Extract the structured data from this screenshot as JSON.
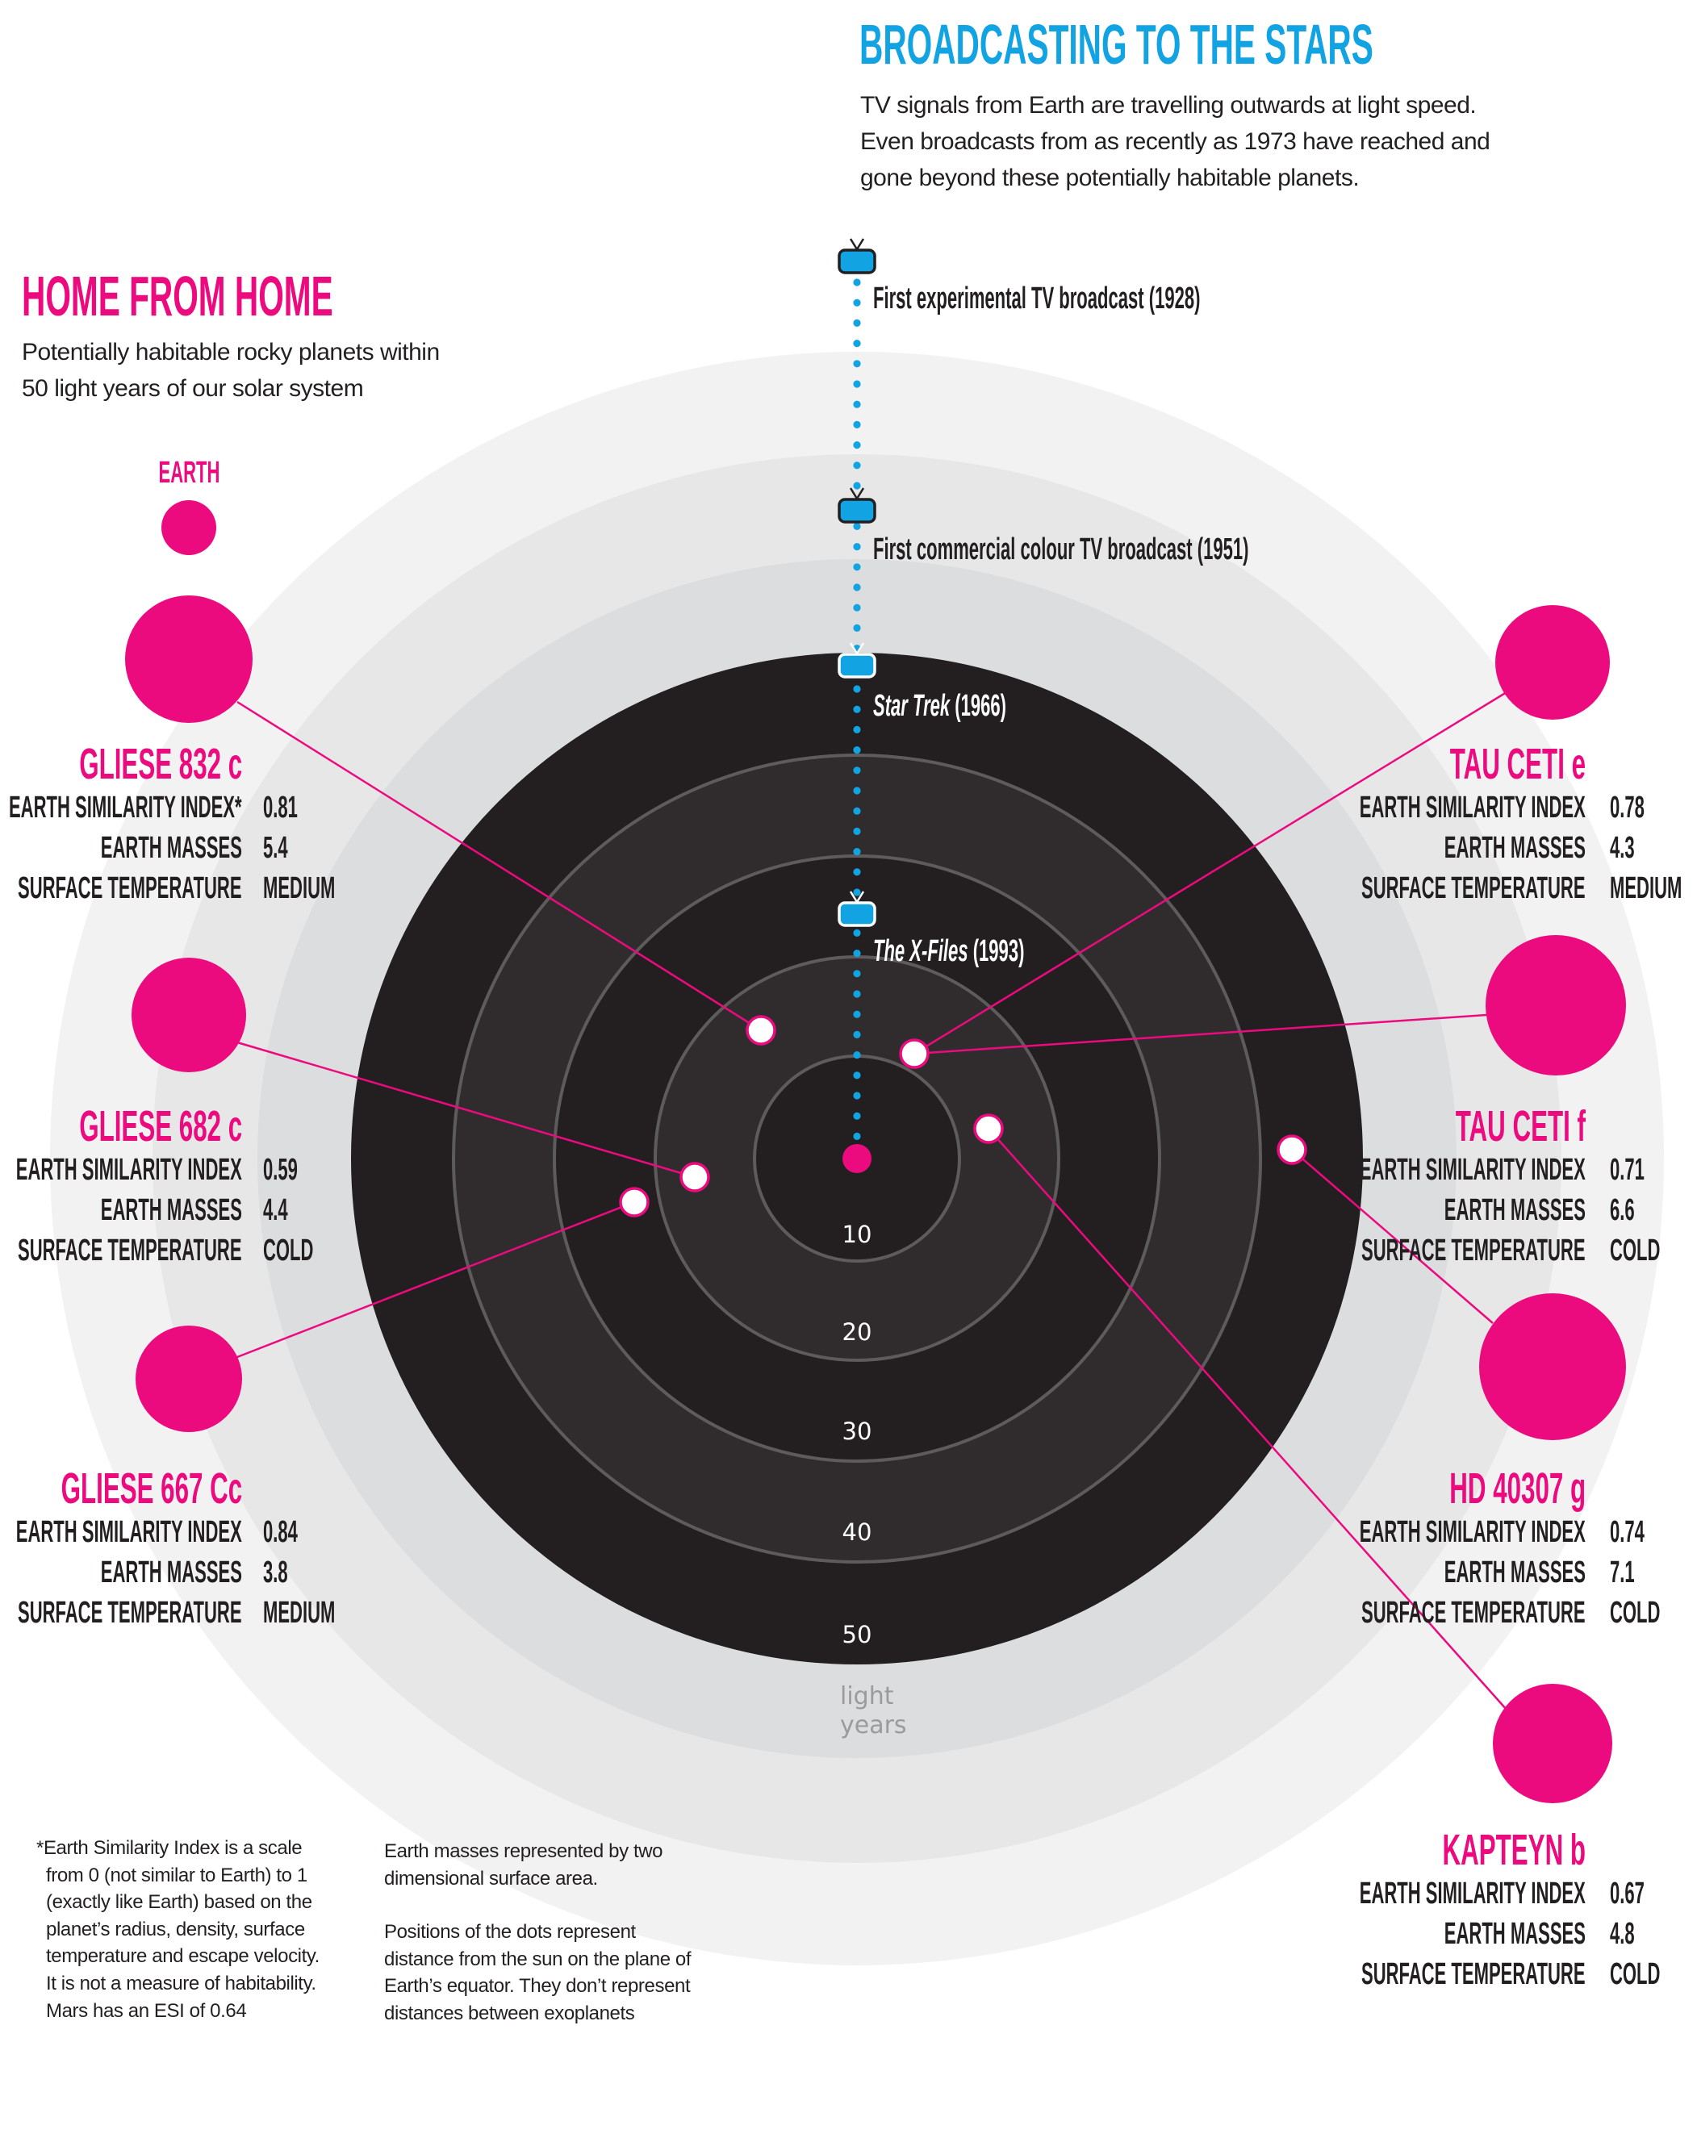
{
  "broadcast": {
    "title": "BROADCASTING TO THE STARS",
    "intro": [
      "TV signals from Earth are travelling outwards at light speed.",
      "Even broadcasts from as recently as 1973 have reached and",
      "gone beyond these potentially habitable  planets."
    ],
    "milestones": [
      {
        "label": "First experimental TV broadcast (1928)",
        "italic": "",
        "rest": "First experimental TV broadcast (1928)"
      },
      {
        "label": "First commercial colour TV broadcast (1951)",
        "italic": "",
        "rest": "First commercial colour TV broadcast (1951)"
      },
      {
        "label": "Star Trek (1966)",
        "italic": "Star Trek",
        "rest": " (1966)"
      },
      {
        "label": "The X-Files (1993)",
        "italic": "The X-Files",
        "rest": " (1993)"
      }
    ]
  },
  "home": {
    "title": "HOME FROM HOME",
    "subtitle": [
      "Potentially habitable rocky planets within",
      "50 light years of our solar system"
    ],
    "earth_label": "EARTH"
  },
  "scale": {
    "ticks": [
      "10",
      "20",
      "30",
      "40",
      "50"
    ],
    "unit": [
      "light",
      "years"
    ]
  },
  "planets": [
    {
      "name": "GLIESE 832 c",
      "esi_label": "EARTH SIMILARITY INDEX*",
      "esi": "0.81",
      "mass_label": "EARTH MASSES",
      "mass": "5.4",
      "temp_label": "SURFACE TEMPERATURE",
      "temp": "MEDIUM"
    },
    {
      "name": "GLIESE 682 c",
      "esi_label": "EARTH SIMILARITY INDEX",
      "esi": "0.59",
      "mass_label": "EARTH MASSES",
      "mass": "4.4",
      "temp_label": "SURFACE TEMPERATURE",
      "temp": "COLD"
    },
    {
      "name": "GLIESE 667 Cc",
      "esi_label": "EARTH SIMILARITY INDEX",
      "esi": "0.84",
      "mass_label": "EARTH MASSES",
      "mass": "3.8",
      "temp_label": "SURFACE TEMPERATURE",
      "temp": "MEDIUM"
    },
    {
      "name": "TAU CETI e",
      "esi_label": "EARTH SIMILARITY INDEX",
      "esi": "0.78",
      "mass_label": "EARTH MASSES",
      "mass": "4.3",
      "temp_label": "SURFACE TEMPERATURE",
      "temp": "MEDIUM"
    },
    {
      "name": "TAU CETI f",
      "esi_label": "EARTH SIMILARITY INDEX",
      "esi": "0.71",
      "mass_label": "EARTH MASSES",
      "mass": "6.6",
      "temp_label": "SURFACE TEMPERATURE",
      "temp": "COLD"
    },
    {
      "name": "HD 40307 g",
      "esi_label": "EARTH SIMILARITY INDEX",
      "esi": "0.74",
      "mass_label": "EARTH MASSES",
      "mass": "7.1",
      "temp_label": "SURFACE TEMPERATURE",
      "temp": "COLD"
    },
    {
      "name": "KAPTEYN b",
      "esi_label": "EARTH SIMILARITY INDEX",
      "esi": "0.67",
      "mass_label": "EARTH MASSES",
      "mass": "4.8",
      "temp_label": "SURFACE TEMPERATURE",
      "temp": "COLD"
    }
  ],
  "notes": {
    "esi": [
      "*Earth Similarity Index is a scale",
      "from 0 (not similar to Earth) to 1",
      "(exactly like Earth) based on the",
      "planet’s radius, density, surface",
      "temperature and escape velocity.",
      "It is not a measure of habitability.",
      "Mars has an ESI of 0.64"
    ],
    "mass": [
      "Earth masses represented by two",
      "dimensional surface area."
    ],
    "positions": [
      "Positions of the dots represent",
      "distance from the sun on the plane of",
      "Earth’s equator. They don’t represent",
      "distances between exoplanets"
    ]
  },
  "colors": {
    "pink": "#ec0a7f",
    "blue": "#12a3e3",
    "dark": "#231f20"
  }
}
